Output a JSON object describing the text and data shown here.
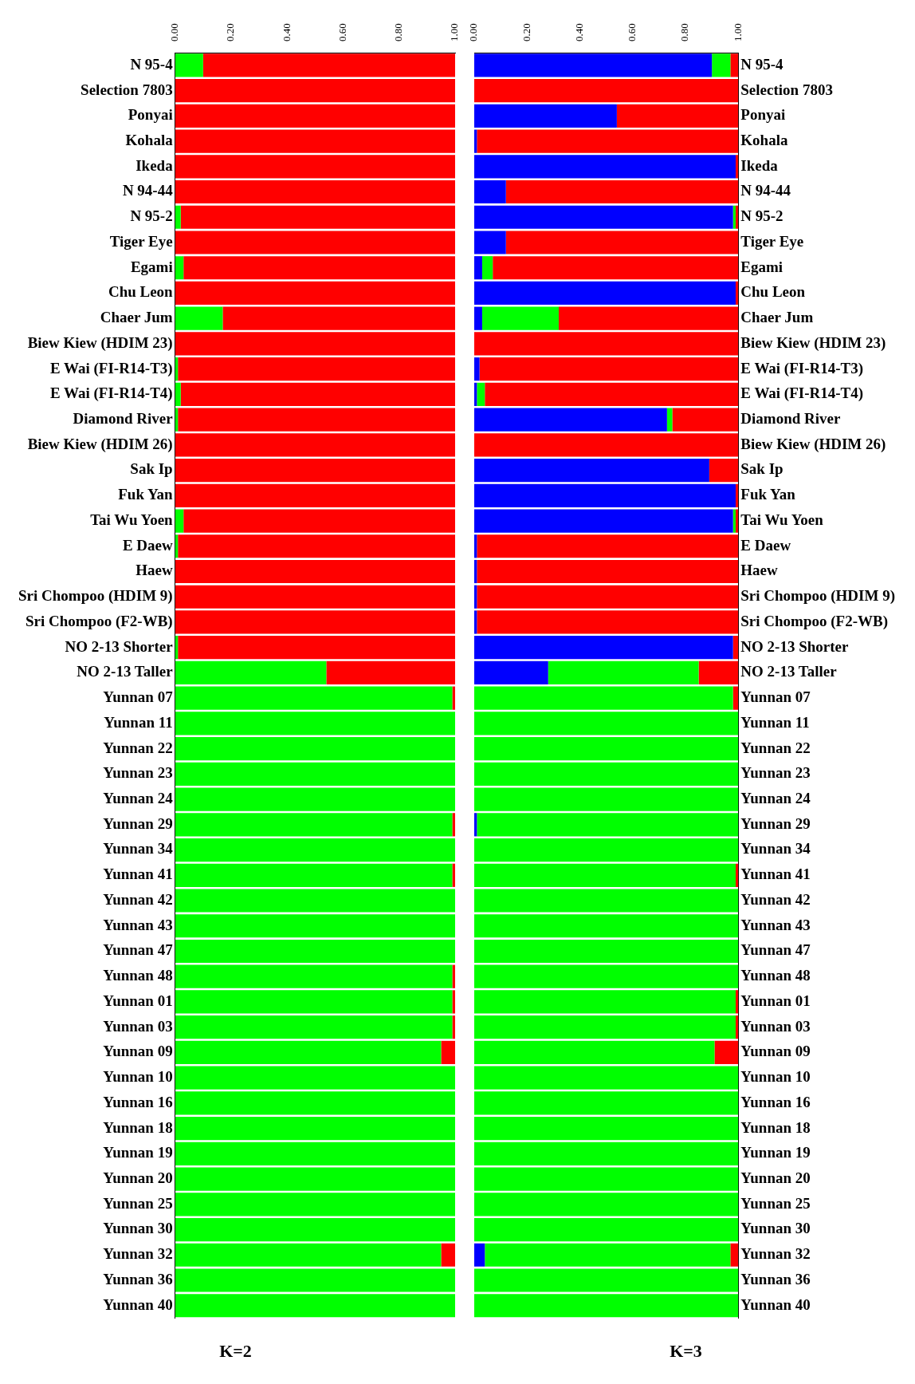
{
  "chart_data": [
    {
      "type": "bar",
      "title": "K=2",
      "orientation": "horizontal",
      "stacked": true,
      "grid": false,
      "legend": false,
      "categories": [
        "N 95-4",
        "Selection 7803",
        "Ponyai",
        "Kohala",
        "Ikeda",
        "N 94-44",
        "N 95-2",
        "Tiger Eye",
        "Egami",
        "Chu Leon",
        "Chaer Jum",
        "Biew Kiew (HDIM 23)",
        "E Wai (FI-R14-T3)",
        "E Wai (FI-R14-T4)",
        "Diamond River",
        "Biew Kiew (HDIM 26)",
        "Sak Ip",
        "Fuk Yan",
        "Tai Wu Yoen",
        "E Daew",
        "Haew",
        "Sri Chompoo (HDIM 9)",
        "Sri Chompoo (F2-WB)",
        "NO 2-13 Shorter",
        "NO 2-13 Taller",
        "Yunnan 07",
        "Yunnan 11",
        "Yunnan 22",
        "Yunnan 23",
        "Yunnan 24",
        "Yunnan 29",
        "Yunnan 34",
        "Yunnan 41",
        "Yunnan 42",
        "Yunnan 43",
        "Yunnan 47",
        "Yunnan 48",
        "Yunnan 01",
        "Yunnan 03",
        "Yunnan 09",
        "Yunnan 10",
        "Yunnan 16",
        "Yunnan 18",
        "Yunnan 19",
        "Yunnan 20",
        "Yunnan 25",
        "Yunnan 30",
        "Yunnan 32",
        "Yunnan 36",
        "Yunnan 40"
      ],
      "xlim": [
        0,
        1
      ],
      "xticks": [
        {
          "value": 0,
          "label": "0.00"
        },
        {
          "value": 0.2,
          "label": "0.20"
        },
        {
          "value": 0.4,
          "label": "0.40"
        },
        {
          "value": 0.6,
          "label": "0.60"
        },
        {
          "value": 0.8,
          "label": "0.80"
        },
        {
          "value": 1,
          "label": "1.00"
        }
      ],
      "series": [
        {
          "color": "#00ff00",
          "values": [
            0.1,
            0,
            0,
            0,
            0,
            0,
            0.02,
            0,
            0.03,
            0,
            0.17,
            0,
            0.01,
            0.02,
            0.01,
            0,
            0,
            0,
            0.03,
            0.01,
            0,
            0,
            0,
            0.01,
            0.54,
            0.99,
            1,
            1,
            1,
            1,
            0.99,
            1,
            0.99,
            1,
            1,
            1,
            0.99,
            0.99,
            0.99,
            0.95,
            1,
            1,
            1,
            1,
            1,
            1,
            1,
            0.95,
            1,
            1
          ]
        },
        {
          "color": "#ff0000",
          "values": [
            0.9,
            1,
            1,
            1,
            1,
            1,
            0.98,
            1,
            0.97,
            1,
            0.83,
            1,
            0.99,
            0.98,
            0.99,
            1,
            1,
            1,
            0.97,
            0.99,
            1,
            1,
            1,
            0.99,
            0.46,
            0.01,
            0,
            0,
            0,
            0,
            0.01,
            0,
            0.01,
            0,
            0,
            0,
            0.01,
            0.01,
            0.01,
            0.05,
            0,
            0,
            0,
            0,
            0,
            0,
            0,
            0.05,
            0,
            0
          ]
        }
      ]
    },
    {
      "type": "bar",
      "title": "K=3",
      "orientation": "horizontal",
      "stacked": true,
      "grid": false,
      "legend": false,
      "categories": [
        "N 95-4",
        "Selection 7803",
        "Ponyai",
        "Kohala",
        "Ikeda",
        "N 94-44",
        "N 95-2",
        "Tiger Eye",
        "Egami",
        "Chu Leon",
        "Chaer Jum",
        "Biew Kiew (HDIM 23)",
        "E Wai (FI-R14-T3)",
        "E Wai (FI-R14-T4)",
        "Diamond River",
        "Biew Kiew (HDIM 26)",
        "Sak Ip",
        "Fuk Yan",
        "Tai Wu Yoen",
        "E Daew",
        "Haew",
        "Sri Chompoo (HDIM 9)",
        "Sri Chompoo (F2-WB)",
        "NO 2-13 Shorter",
        "NO 2-13 Taller",
        "Yunnan 07",
        "Yunnan 11",
        "Yunnan 22",
        "Yunnan 23",
        "Yunnan 24",
        "Yunnan 29",
        "Yunnan 34",
        "Yunnan 41",
        "Yunnan 42",
        "Yunnan 43",
        "Yunnan 47",
        "Yunnan 48",
        "Yunnan 01",
        "Yunnan 03",
        "Yunnan 09",
        "Yunnan 10",
        "Yunnan 16",
        "Yunnan 18",
        "Yunnan 19",
        "Yunnan 20",
        "Yunnan 25",
        "Yunnan 30",
        "Yunnan 32",
        "Yunnan 36",
        "Yunnan 40"
      ],
      "xlim": [
        0,
        1
      ],
      "xticks": [
        {
          "value": 0,
          "label": "0.00"
        },
        {
          "value": 0.2,
          "label": "0.20"
        },
        {
          "value": 0.4,
          "label": "0.40"
        },
        {
          "value": 0.6,
          "label": "0.60"
        },
        {
          "value": 0.8,
          "label": "0.80"
        },
        {
          "value": 1,
          "label": "1.00"
        }
      ],
      "series": [
        {
          "color": "#0000ff",
          "values": [
            0.9,
            0,
            0.54,
            0.01,
            0.99,
            0.12,
            0.98,
            0.12,
            0.03,
            0.99,
            0.03,
            0,
            0.02,
            0.01,
            0.73,
            0,
            0.89,
            0.99,
            0.98,
            0.01,
            0.01,
            0.01,
            0.01,
            0.98,
            0.28,
            0,
            0,
            0,
            0,
            0,
            0.01,
            0,
            0,
            0,
            0,
            0,
            0,
            0,
            0,
            0,
            0,
            0,
            0,
            0,
            0,
            0,
            0,
            0.04,
            0,
            0
          ]
        },
        {
          "color": "#00ff00",
          "values": [
            0.07,
            0,
            0,
            0,
            0,
            0,
            0.01,
            0,
            0.04,
            0,
            0.29,
            0,
            0,
            0.03,
            0.02,
            0,
            0,
            0,
            0.01,
            0,
            0,
            0,
            0,
            0,
            0.57,
            0.98,
            1,
            1,
            1,
            1,
            0.99,
            1,
            0.99,
            1,
            1,
            1,
            1,
            0.99,
            0.99,
            0.91,
            1,
            1,
            1,
            1,
            1,
            1,
            1,
            0.93,
            1,
            1
          ]
        },
        {
          "color": "#ff0000",
          "values": [
            0.03,
            1,
            0.46,
            0.99,
            0.01,
            0.88,
            0.01,
            0.88,
            0.93,
            0.01,
            0.68,
            1,
            0.98,
            0.96,
            0.25,
            1,
            0.11,
            0.01,
            0.01,
            0.99,
            0.99,
            0.99,
            0.99,
            0.02,
            0.15,
            0.02,
            0,
            0,
            0,
            0,
            0,
            0,
            0.01,
            0,
            0,
            0,
            0,
            0.01,
            0.01,
            0.09,
            0,
            0,
            0,
            0,
            0,
            0,
            0,
            0.03,
            0,
            0
          ]
        }
      ]
    }
  ]
}
